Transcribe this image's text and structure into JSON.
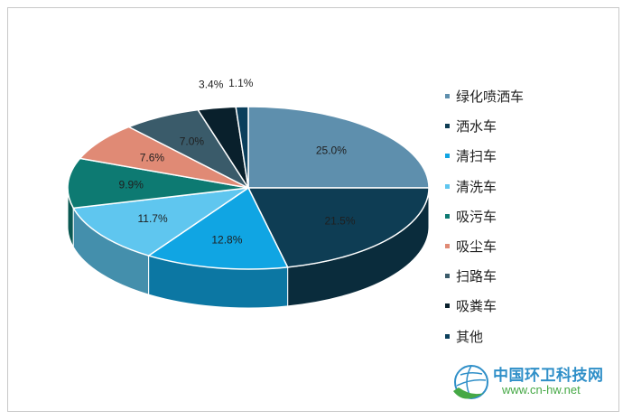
{
  "chart_data": {
    "type": "pie",
    "style": "3d",
    "categories": [
      "绿化喷洒车",
      "洒水车",
      "清扫车",
      "清洗车",
      "吸污车",
      "吸尘车",
      "扫路车",
      "吸粪车",
      "其他"
    ],
    "values": [
      25.0,
      21.5,
      12.8,
      11.7,
      9.9,
      7.6,
      7.0,
      3.4,
      1.1
    ],
    "value_labels": [
      "25.0%",
      "21.5%",
      "12.8%",
      "11.7%",
      "9.9%",
      "7.6%",
      "7.0%",
      "3.4%",
      "1.1%"
    ],
    "colors": [
      "#5e8fad",
      "#0e3d54",
      "#10a5e3",
      "#5fc6ef",
      "#0d7a72",
      "#e08a75",
      "#3a5b6a",
      "#09202c",
      "#0b3f5c"
    ],
    "legend_position": "right"
  },
  "watermark": {
    "title": "中国环卫科技网",
    "url": "www.cn-hw.net"
  }
}
